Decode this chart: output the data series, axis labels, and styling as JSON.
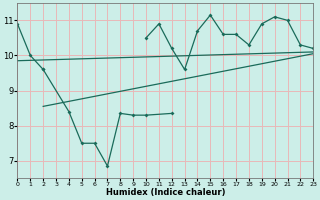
{
  "xlabel": "Humidex (Indice chaleur)",
  "bg_color": "#cceee8",
  "grid_color": "#e8b8b8",
  "line_color": "#1a6b5a",
  "xmin": 0,
  "xmax": 23,
  "ymin": 6.5,
  "ymax": 11.5,
  "yticks": [
    7,
    8,
    9,
    10,
    11
  ],
  "xticks": [
    0,
    1,
    2,
    3,
    4,
    5,
    6,
    7,
    8,
    9,
    10,
    11,
    12,
    13,
    14,
    15,
    16,
    17,
    18,
    19,
    20,
    21,
    22,
    23
  ],
  "line1_x": [
    0,
    1,
    2,
    10,
    11,
    12,
    13,
    14,
    15,
    16,
    17,
    18,
    19,
    20,
    21,
    22,
    23
  ],
  "line1_y": [
    10.9,
    10.0,
    9.6,
    10.5,
    10.9,
    10.2,
    9.6,
    10.7,
    11.15,
    10.6,
    10.6,
    10.3,
    10.9,
    11.1,
    11.0,
    10.3,
    10.2
  ],
  "line2_x": [
    2,
    4,
    5,
    6,
    7,
    8,
    9,
    10,
    12
  ],
  "line2_y": [
    9.6,
    8.4,
    7.5,
    7.5,
    6.85,
    8.35,
    8.3,
    8.3,
    8.35
  ],
  "trend1_x": [
    0,
    23
  ],
  "trend1_y": [
    9.85,
    10.1
  ],
  "trend2_x": [
    2,
    23
  ],
  "trend2_y": [
    8.55,
    10.05
  ]
}
